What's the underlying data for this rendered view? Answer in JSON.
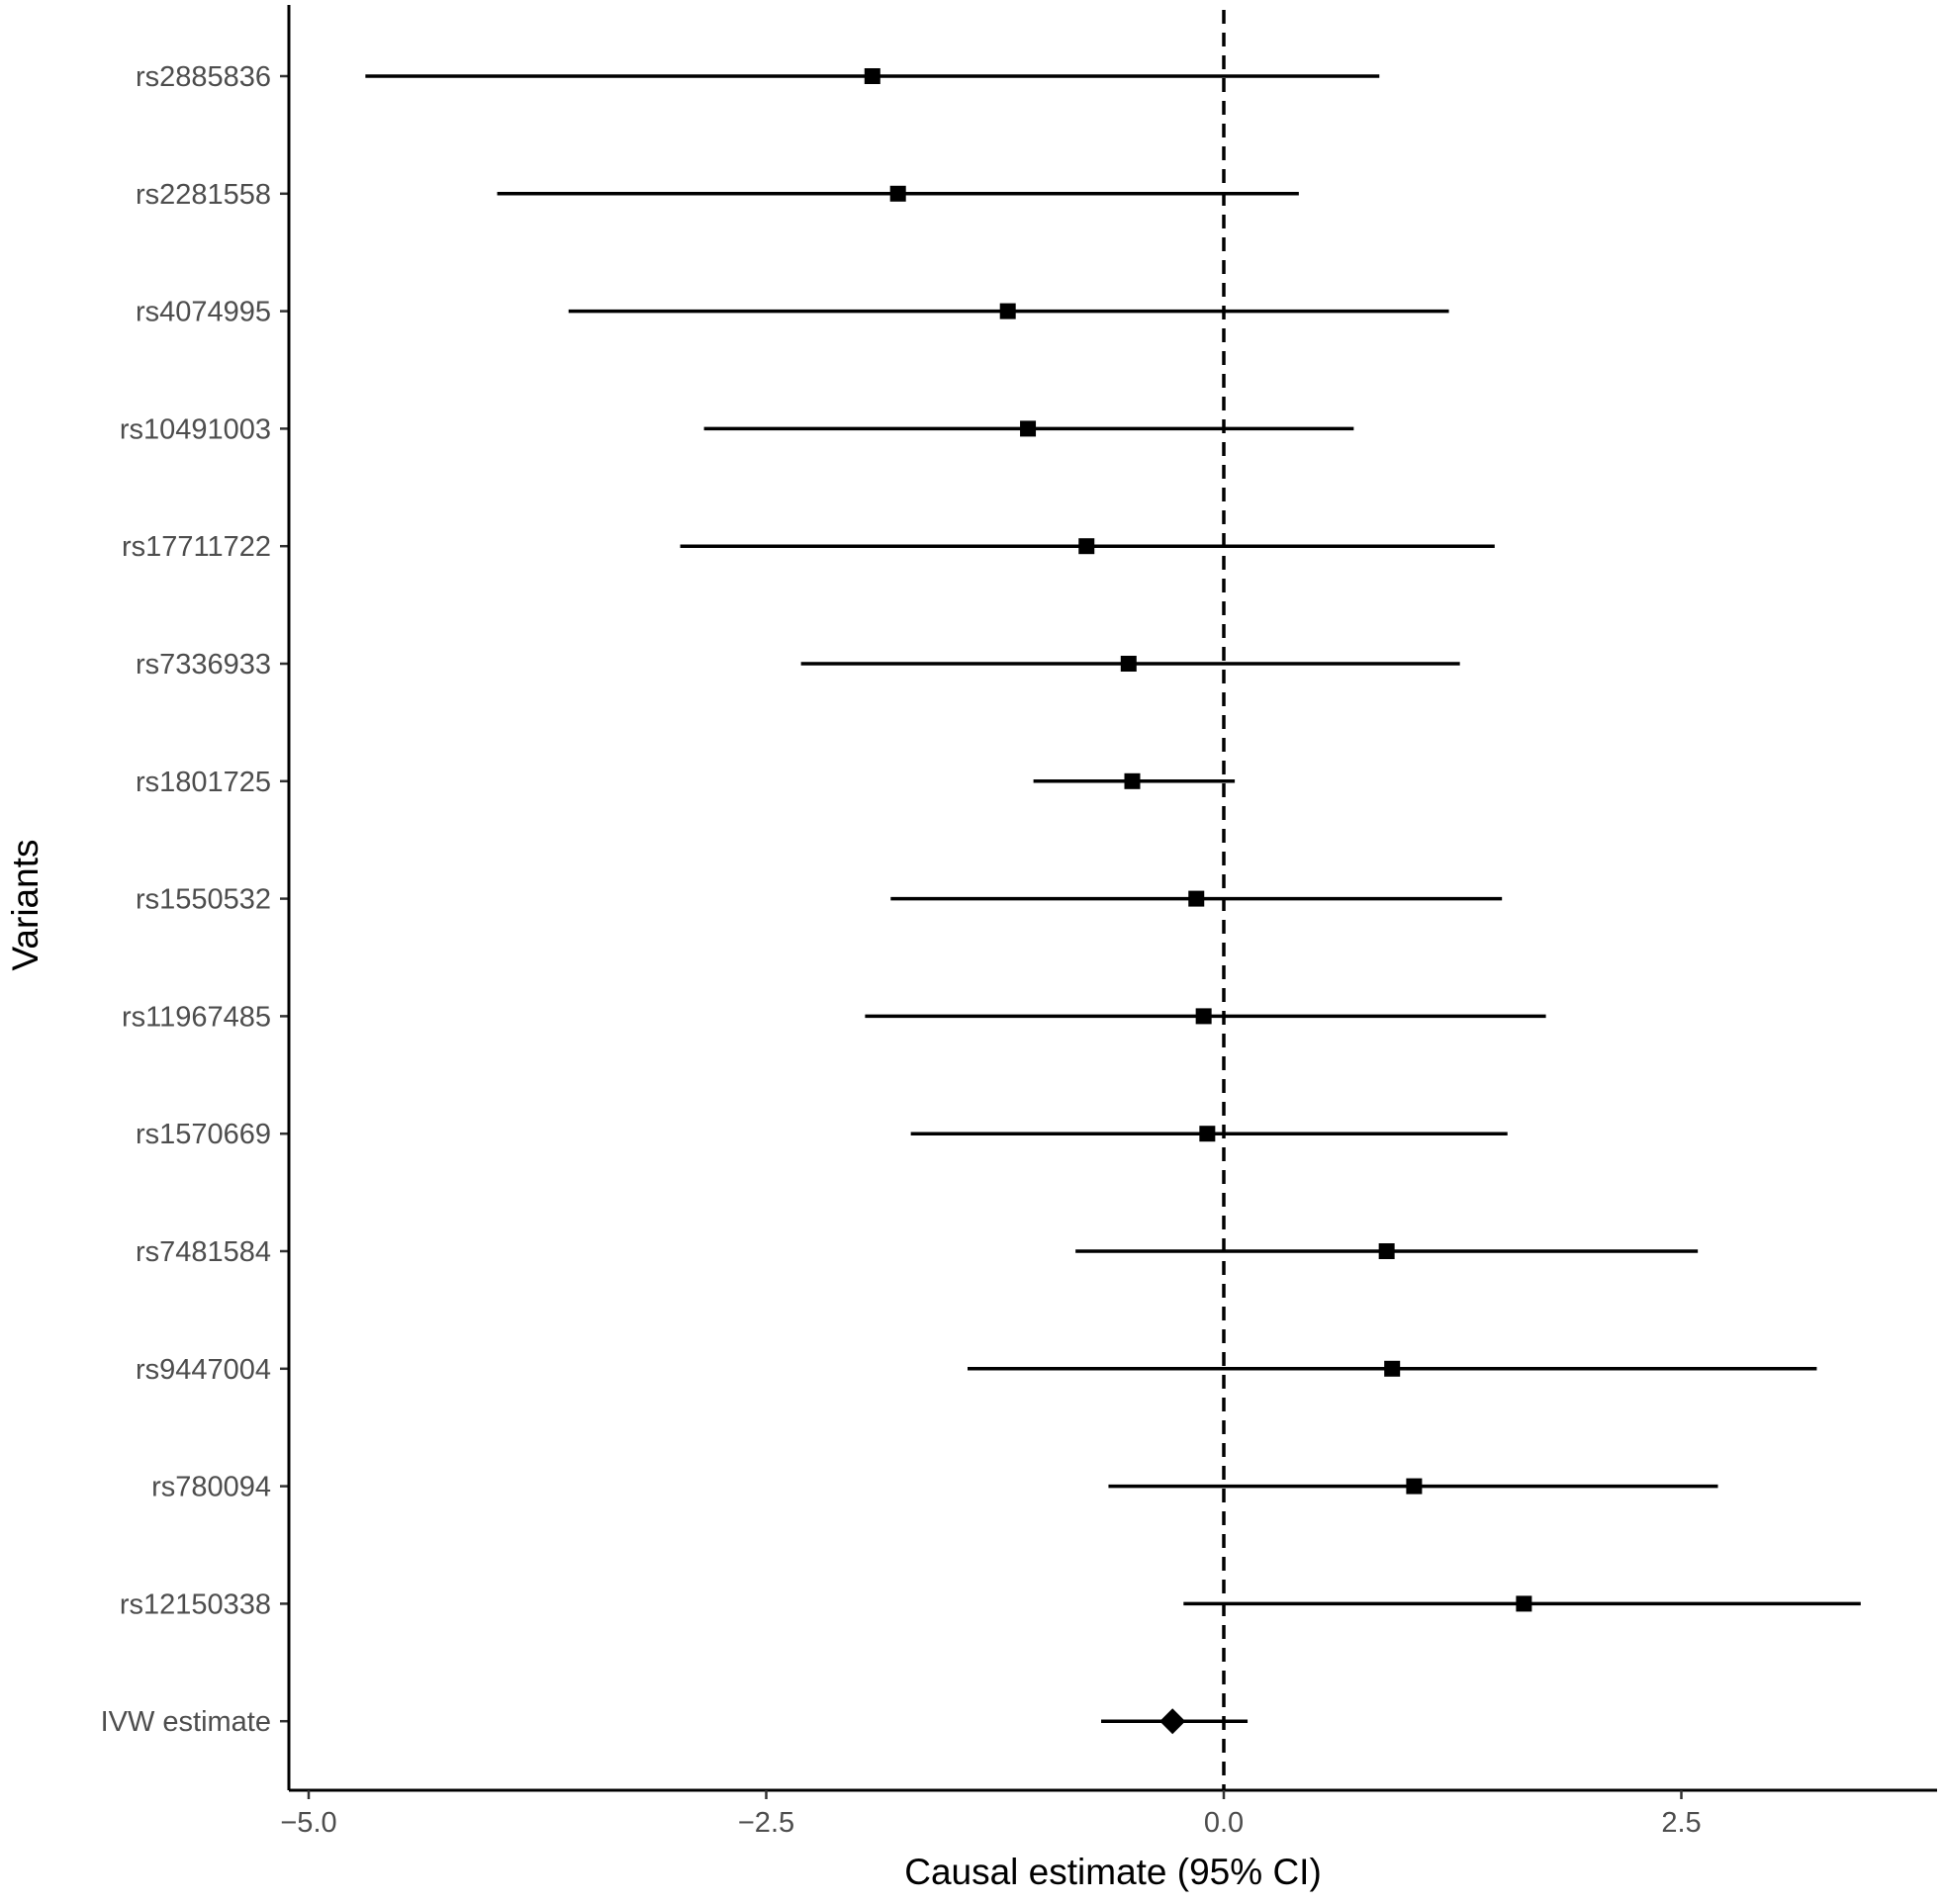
{
  "chart_data": {
    "type": "forest",
    "xlabel": "Causal estimate (95% CI)",
    "ylabel": "Variants",
    "xlim": [
      -5.25,
      3.75
    ],
    "x_ticks": [
      -5.0,
      -2.5,
      0.0,
      2.5
    ],
    "x_tick_labels": [
      "−5.0",
      "−2.5",
      "0.0",
      "2.5"
    ],
    "reference_line": 0.0,
    "grid": false,
    "rows": [
      {
        "label": "rs2885836",
        "estimate": -1.92,
        "lower": -4.69,
        "upper": 0.85,
        "marker": "square"
      },
      {
        "label": "rs2281558",
        "estimate": -1.78,
        "lower": -3.97,
        "upper": 0.41,
        "marker": "square"
      },
      {
        "label": "rs4074995",
        "estimate": -1.18,
        "lower": -3.58,
        "upper": 1.23,
        "marker": "square"
      },
      {
        "label": "rs10491003",
        "estimate": -1.07,
        "lower": -2.84,
        "upper": 0.71,
        "marker": "square"
      },
      {
        "label": "rs17711722",
        "estimate": -0.75,
        "lower": -2.97,
        "upper": 1.48,
        "marker": "square"
      },
      {
        "label": "rs7336933",
        "estimate": -0.52,
        "lower": -2.31,
        "upper": 1.29,
        "marker": "square"
      },
      {
        "label": "rs1801725",
        "estimate": -0.5,
        "lower": -1.04,
        "upper": 0.06,
        "marker": "square"
      },
      {
        "label": "rs1550532",
        "estimate": -0.15,
        "lower": -1.82,
        "upper": 1.52,
        "marker": "square"
      },
      {
        "label": "rs11967485",
        "estimate": -0.11,
        "lower": -1.96,
        "upper": 1.76,
        "marker": "square"
      },
      {
        "label": "rs1570669",
        "estimate": -0.09,
        "lower": -1.71,
        "upper": 1.55,
        "marker": "square"
      },
      {
        "label": "rs7481584",
        "estimate": 0.89,
        "lower": -0.81,
        "upper": 2.59,
        "marker": "square"
      },
      {
        "label": "rs9447004",
        "estimate": 0.92,
        "lower": -1.4,
        "upper": 3.24,
        "marker": "square"
      },
      {
        "label": "rs780094",
        "estimate": 1.04,
        "lower": -0.63,
        "upper": 2.7,
        "marker": "square"
      },
      {
        "label": "rs12150338",
        "estimate": 1.64,
        "lower": -0.22,
        "upper": 3.48,
        "marker": "square"
      },
      {
        "label": "IVW estimate",
        "estimate": -0.28,
        "lower": -0.67,
        "upper": 0.13,
        "marker": "diamond"
      }
    ]
  }
}
